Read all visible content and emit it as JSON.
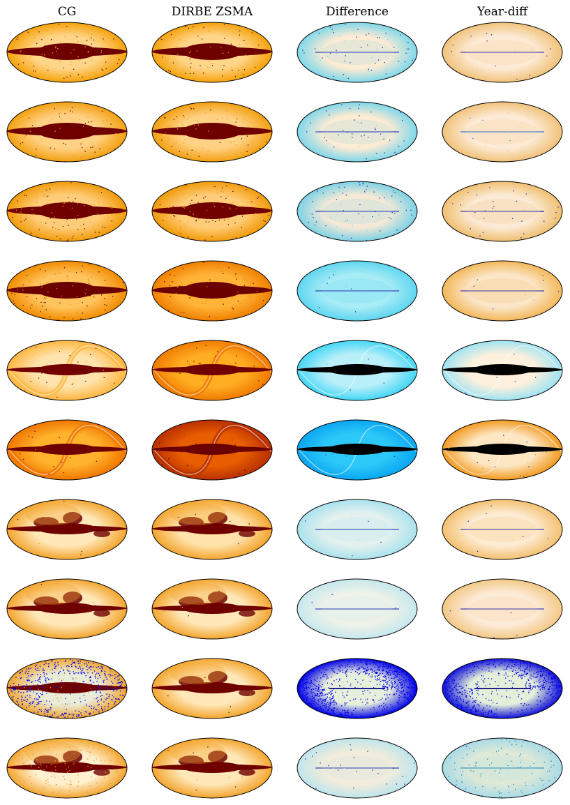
{
  "columns": [
    {
      "title": "CG"
    },
    {
      "title": "DIRBE ZSMA"
    },
    {
      "title": "Difference"
    },
    {
      "title": "Year-diff"
    }
  ],
  "panels": [
    [
      {
        "style": "sky",
        "base": "#ffd58a",
        "band": "#6e0000",
        "edge": "#f5a20a",
        "speckle": "#5a0000",
        "density": 0.55
      },
      {
        "style": "sky",
        "base": "#ffd58a",
        "band": "#6e0000",
        "edge": "#f5a20a",
        "speckle": "#5a0000",
        "density": 0.55
      },
      {
        "style": "diff",
        "base": "#fdebd3",
        "accent": "#7fd8ea",
        "speckle": "#1d2bb0",
        "density": 0.35
      },
      {
        "style": "diff",
        "base": "#fdebd7",
        "accent": "#f1c27a",
        "speckle": "#2a2ab0",
        "density": 0.08
      }
    ],
    [
      {
        "style": "sky",
        "base": "#ffd184",
        "band": "#6e0000",
        "edge": "#f3a010",
        "speckle": "#5a0000",
        "density": 0.45
      },
      {
        "style": "sky",
        "base": "#ffd184",
        "band": "#6e0000",
        "edge": "#f3a010",
        "speckle": "#5a0000",
        "density": 0.45
      },
      {
        "style": "diff",
        "base": "#fdebd3",
        "accent": "#80d7ea",
        "speckle": "#1d2bb0",
        "density": 0.3
      },
      {
        "style": "diff",
        "base": "#fdebd7",
        "accent": "#f1c27a",
        "speckle": "#1e6ad0",
        "density": 0.08
      }
    ],
    [
      {
        "style": "sky",
        "base": "#ffcd7a",
        "band": "#700000",
        "edge": "#f19a08",
        "speckle": "#5a0000",
        "density": 0.6
      },
      {
        "style": "sky",
        "base": "#ffcd7a",
        "band": "#700000",
        "edge": "#f19a08",
        "speckle": "#5a0000",
        "density": 0.6
      },
      {
        "style": "diff",
        "base": "#f5e9d6",
        "accent": "#7dd2e6",
        "speckle": "#1d2bb0",
        "density": 0.45
      },
      {
        "style": "diff",
        "base": "#fbead5",
        "accent": "#f0bf70",
        "speckle": "#1d2bb0",
        "density": 0.2
      }
    ],
    [
      {
        "style": "sky",
        "base": "#ffc45e",
        "band": "#6a0000",
        "edge": "#f28c00",
        "speckle": "#5a0000",
        "density": 0.55
      },
      {
        "style": "sky",
        "base": "#ffb438",
        "band": "#6a0000",
        "edge": "#f07f00",
        "speckle": "#5a0000",
        "density": 0.35
      },
      {
        "style": "diff",
        "base": "#a8ecf6",
        "accent": "#5fd6f0",
        "speckle": "#1d2bb0",
        "density": 0.1
      },
      {
        "style": "diff",
        "base": "#fbe6c8",
        "accent": "#f3b85a",
        "speckle": "#1d2bb0",
        "density": 0.08
      }
    ],
    [
      {
        "style": "zodi",
        "base": "#ffe3ac",
        "band": "#730000",
        "edge": "#ffb640",
        "speckle": "#6a0000",
        "density": 0.15
      },
      {
        "style": "zodi",
        "base": "#ffae22",
        "band": "#700000",
        "edge": "#f07a00",
        "speckle": "#6a0000",
        "density": 0.15
      },
      {
        "style": "zodi",
        "base": "#b8eff9",
        "accent": "#44d6f6",
        "speckle": "#1d2bb0",
        "density": 0.05
      },
      {
        "style": "zodi",
        "base": "#fdf0dc",
        "accent": "#9ee3f2",
        "speckle": "#1d2bb0",
        "density": 0.05
      }
    ],
    [
      {
        "style": "zodi",
        "base": "#ffb22c",
        "band": "#6e0000",
        "edge": "#f07600",
        "speckle": "#6a0000",
        "density": 0.12
      },
      {
        "style": "zodi",
        "base": "#e85d00",
        "band": "#6a0000",
        "edge": "#b83000",
        "speckle": "#5a0000",
        "density": 0.1
      },
      {
        "style": "zodi",
        "base": "#2cc8f8",
        "accent": "#0aa6f2",
        "speckle": "#1d2bb0",
        "density": 0.05
      },
      {
        "style": "zodi",
        "base": "#fde6c2",
        "accent": "#f29a20",
        "speckle": "#1d2bb0",
        "density": 0.05
      }
    ],
    [
      {
        "style": "dust",
        "base": "#ffe7b8",
        "band": "#6e0000",
        "edge": "#f3a52e",
        "speckle": "#6a0000",
        "density": 0.05
      },
      {
        "style": "dust",
        "base": "#ffe2aa",
        "band": "#6e0000",
        "edge": "#f3a52e",
        "speckle": "#6a0000",
        "density": 0.05
      },
      {
        "style": "diff",
        "base": "#e4f1ee",
        "accent": "#a9e2ee",
        "speckle": "#1d2bb0",
        "density": 0.06
      },
      {
        "style": "diff",
        "base": "#fdebd2",
        "accent": "#f3c070",
        "speckle": "#1d2bb0",
        "density": 0.06
      }
    ],
    [
      {
        "style": "dust",
        "base": "#ffe7b8",
        "band": "#6e0000",
        "edge": "#f3a52e",
        "speckle": "#6a0000",
        "density": 0.03
      },
      {
        "style": "dust",
        "base": "#ffe7b8",
        "band": "#6e0000",
        "edge": "#f3a52e",
        "speckle": "#6a0000",
        "density": 0.03
      },
      {
        "style": "diff",
        "base": "#eef2e8",
        "accent": "#c6e8ee",
        "speckle": "#1d2bb0",
        "density": 0.03
      },
      {
        "style": "diff",
        "base": "#fdebd9",
        "accent": "#f3c886",
        "speckle": "#1d2bb0",
        "density": 0.03
      }
    ],
    [
      {
        "style": "noisy",
        "base": "#e8ecd8",
        "band": "#6e0000",
        "edge": "#f3a52e",
        "speckle": "#0000ee",
        "density": 0.9
      },
      {
        "style": "dust",
        "base": "#ffe7b8",
        "band": "#6e0000",
        "edge": "#f3a52e",
        "speckle": "#6a0000",
        "density": 0.05
      },
      {
        "style": "blue",
        "base": "#e6eedc",
        "accent": "#0000e6",
        "speckle": "#0000e6",
        "density": 1.0
      },
      {
        "style": "blue",
        "base": "#e3efd9",
        "accent": "#1010d8",
        "speckle": "#0000e6",
        "density": 0.7
      }
    ],
    [
      {
        "style": "dust",
        "base": "#fff0cf",
        "band": "#6e0000",
        "edge": "#f3a52e",
        "speckle": "#e0a030",
        "density": 0.7
      },
      {
        "style": "dust",
        "base": "#ffe7b8",
        "band": "#6e0000",
        "edge": "#f3a52e",
        "speckle": "#6a0000",
        "density": 0.05
      },
      {
        "style": "diff",
        "base": "#f3ecda",
        "accent": "#bfe5ec",
        "speckle": "#1d2bb0",
        "density": 0.2
      },
      {
        "style": "diff",
        "base": "#dfe9d6",
        "accent": "#a9dbe6",
        "speckle": "#1a8ac0",
        "density": 0.8
      }
    ]
  ]
}
